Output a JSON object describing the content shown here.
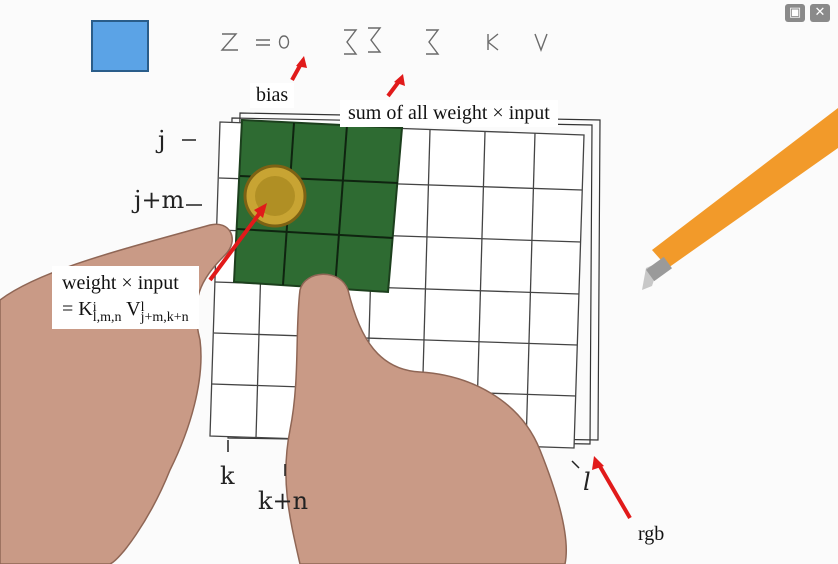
{
  "window_controls": {
    "pip_icon": "picture-in-picture-icon",
    "close_icon": "close-icon"
  },
  "formula": {
    "text": "Z^i_{j,k} = g(b^i + Σ_l Σ_{m=0}^{M−1} Σ_{n=0}^{N−1} K^i_{l,m,n} V^l_{j+m,k+n})"
  },
  "annotations": {
    "bias": "bias",
    "sum": "sum of all weight × input",
    "weight_line1": "weight × input",
    "weight_line2_prefix": "= K",
    "weight_K_sup": "i",
    "weight_K_sub": "l,m,n",
    "weight_V": " V",
    "weight_V_sup": "l",
    "weight_V_sub": "j+m,k+n",
    "rgb": "rgb"
  },
  "handwritten": {
    "j": "j",
    "j_plus_m": "j+m",
    "k": "k",
    "k_plus_n": "k+n",
    "l": "l"
  },
  "colors": {
    "kernel_green": "#2e6b32",
    "arrow_red": "#e11a1a",
    "square_blue": "#5ba3e6",
    "pencil_orange": "#f29a2a",
    "skin": "#c99a86"
  }
}
